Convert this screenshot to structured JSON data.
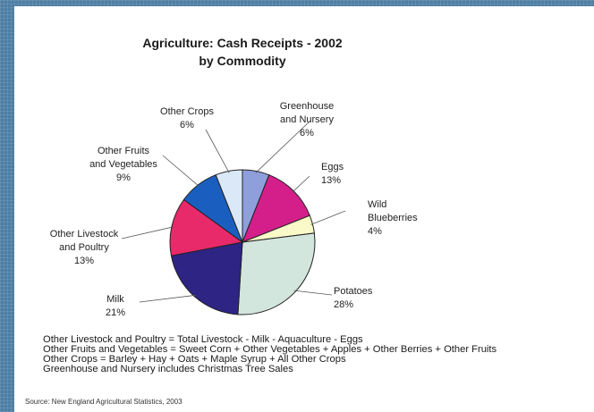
{
  "chart_data": {
    "type": "pie",
    "title": "Agriculture: Cash Receipts - 2002",
    "subtitle": "by Commodity",
    "slices": [
      {
        "name": "Greenhouse and Nursery",
        "label_lines": [
          "Greenhouse",
          "and Nursery"
        ],
        "pct_label": "6%",
        "value": 6,
        "color": "#8e9fdc"
      },
      {
        "name": "Eggs",
        "label_lines": [
          "Eggs"
        ],
        "pct_label": "13%",
        "value": 13,
        "color": "#d41f8a"
      },
      {
        "name": "Wild Blueberries",
        "label_lines": [
          "Wild",
          "Blueberries"
        ],
        "pct_label": "4%",
        "value": 4,
        "color": "#fafac8"
      },
      {
        "name": "Potatoes",
        "label_lines": [
          "Potatoes"
        ],
        "pct_label": "28%",
        "value": 28,
        "color": "#d3e6de"
      },
      {
        "name": "Milk",
        "label_lines": [
          "Milk"
        ],
        "pct_label": "21%",
        "value": 21,
        "color": "#2e2484"
      },
      {
        "name": "Other Livestock and Poultry",
        "label_lines": [
          "Other Livestock",
          "and Poultry"
        ],
        "pct_label": "13%",
        "value": 13,
        "color": "#e8296a"
      },
      {
        "name": "Other Fruits and Vegetables",
        "label_lines": [
          "Other Fruits",
          "and Vegetables"
        ],
        "pct_label": "9%",
        "value": 9,
        "color": "#1a5fc0"
      },
      {
        "name": "Other Crops",
        "label_lines": [
          "Other Crops"
        ],
        "pct_label": "6%",
        "value": 6,
        "color": "#dbe8f8"
      }
    ]
  },
  "notes": [
    "Other Livestock and Poultry = Total Livestock - Milk - Aquaculture - Eggs",
    "Other Fruits and Vegetables = Sweet Corn + Other Vegetables + Apples + Other Berries + Other Fruits",
    "Other Crops = Barley + Hay + Oats + Maple Syrup + All Other Crops",
    "Greenhouse and Nursery includes Christmas Tree Sales"
  ],
  "source": "Source: New England Agricultural Statistics, 2003"
}
